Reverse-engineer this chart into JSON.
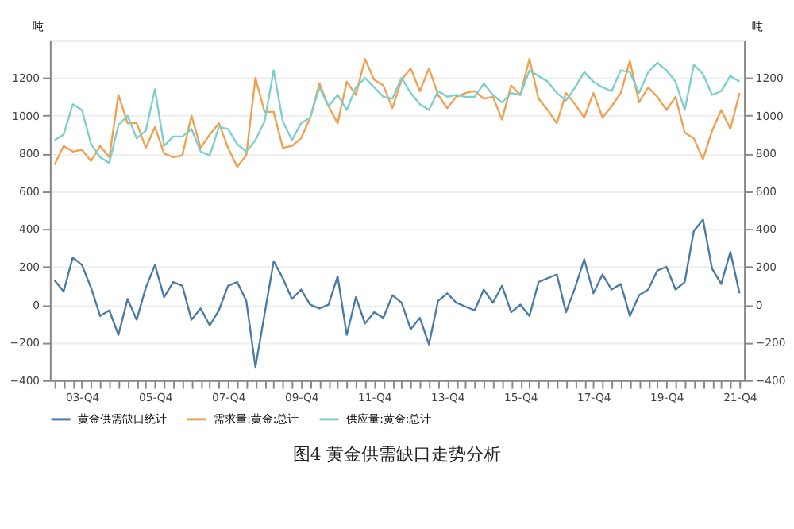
{
  "chart_data": {
    "type": "line",
    "title": "图4 黄金供需缺口走势分析",
    "ylabel": "吨",
    "y2label": "吨",
    "categories": [
      null,
      null,
      null,
      "03-Q4",
      null,
      null,
      null,
      null,
      null,
      null,
      null,
      "05-Q4",
      null,
      null,
      null,
      null,
      null,
      null,
      null,
      "07-Q4",
      null,
      null,
      null,
      null,
      null,
      null,
      null,
      "09-Q4",
      null,
      null,
      null,
      null,
      null,
      null,
      null,
      "11-Q4",
      null,
      null,
      null,
      null,
      null,
      null,
      null,
      "13-Q4",
      null,
      null,
      null,
      null,
      null,
      null,
      null,
      "15-Q4",
      null,
      null,
      null,
      null,
      null,
      null,
      null,
      "17-Q4",
      null,
      null,
      null,
      null,
      null,
      null,
      null,
      "19-Q4",
      null,
      null,
      null,
      null,
      null,
      null,
      null,
      "21-Q4"
    ],
    "series": [
      {
        "name": "黄金供需缺口统计",
        "color": "#4a7ba6",
        "values": [
          130,
          70,
          250,
          210,
          90,
          -60,
          -30,
          -160,
          30,
          -80,
          90,
          210,
          40,
          120,
          100,
          -80,
          -20,
          -110,
          -30,
          100,
          120,
          20,
          -330,
          -50,
          230,
          140,
          30,
          80,
          0,
          -20,
          0,
          150,
          -160,
          40,
          -100,
          -40,
          -70,
          50,
          10,
          -130,
          -70,
          -210,
          20,
          60,
          10,
          -10,
          -30,
          80,
          10,
          100,
          -40,
          0,
          -60,
          120,
          140,
          160,
          -40,
          90,
          240,
          60,
          160,
          80,
          110,
          -60,
          50,
          80,
          180,
          200,
          80,
          120,
          390,
          450,
          190,
          110,
          280,
          60
        ]
      },
      {
        "name": "需求量:黄金:总计",
        "color": "#f0a050",
        "axis": "y2",
        "values": [
          740,
          840,
          810,
          820,
          760,
          840,
          780,
          1110,
          960,
          960,
          830,
          940,
          800,
          780,
          790,
          1000,
          830,
          900,
          960,
          830,
          730,
          790,
          1200,
          1020,
          1020,
          830,
          840,
          880,
          990,
          1170,
          1050,
          960,
          1180,
          1110,
          1300,
          1190,
          1160,
          1040,
          1190,
          1250,
          1130,
          1250,
          1110,
          1040,
          1100,
          1120,
          1130,
          1090,
          1100,
          980,
          1160,
          1110,
          1300,
          1090,
          1030,
          960,
          1120,
          1060,
          990,
          1120,
          990,
          1050,
          1120,
          1290,
          1070,
          1150,
          1100,
          1030,
          1100,
          910,
          880,
          770,
          920,
          1030,
          930,
          1120
        ]
      },
      {
        "name": "供应量:黄金:总计",
        "color": "#7ccfcc",
        "axis": "y2",
        "values": [
          870,
          900,
          1060,
          1030,
          850,
          780,
          750,
          950,
          1000,
          880,
          920,
          1140,
          840,
          890,
          890,
          930,
          810,
          790,
          940,
          930,
          850,
          810,
          870,
          970,
          1240,
          970,
          870,
          960,
          990,
          1150,
          1050,
          1110,
          1030,
          1150,
          1200,
          1150,
          1100,
          1090,
          1200,
          1120,
          1060,
          1030,
          1130,
          1100,
          1110,
          1100,
          1100,
          1170,
          1110,
          1070,
          1120,
          1110,
          1240,
          1210,
          1180,
          1120,
          1080,
          1150,
          1230,
          1180,
          1150,
          1130,
          1240,
          1230,
          1120,
          1230,
          1280,
          1240,
          1180,
          1030,
          1270,
          1220,
          1110,
          1130,
          1210,
          1180
        ]
      }
    ],
    "ylim": [
      -400,
      1400
    ],
    "yticks": [
      -400,
      -200,
      0,
      200,
      400,
      600,
      800,
      1000,
      1200
    ],
    "y2lim": [
      -400,
      1400
    ],
    "y2ticks": [
      -400,
      -200,
      0,
      200,
      400,
      600,
      800,
      1000,
      1200
    ],
    "grid": "y",
    "legend": "bottom",
    "marker": "none",
    "line_style": "solid"
  }
}
